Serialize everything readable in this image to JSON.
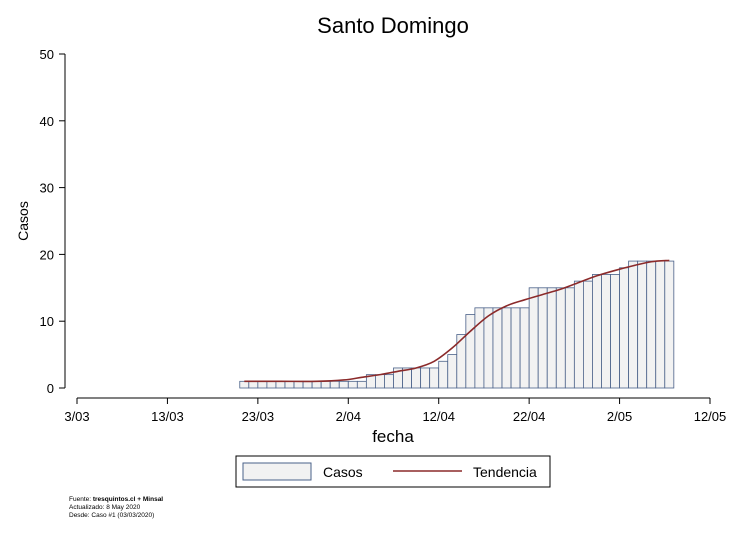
{
  "chart_data": {
    "type": "bar",
    "title": "Santo Domingo",
    "xlabel": "fecha",
    "ylabel": "Casos",
    "ylim": [
      0,
      50
    ],
    "yticks": [
      "0",
      "10",
      "20",
      "30",
      "40",
      "50"
    ],
    "xlim": [
      "2020-03-03",
      "2020-05-12"
    ],
    "xticks": [
      {
        "date": "2020-03-03",
        "label": "3/03"
      },
      {
        "date": "2020-03-13",
        "label": "13/03"
      },
      {
        "date": "2020-03-23",
        "label": "23/03"
      },
      {
        "date": "2020-04-02",
        "label": "2/04"
      },
      {
        "date": "2020-04-12",
        "label": "12/04"
      },
      {
        "date": "2020-04-22",
        "label": "22/04"
      },
      {
        "date": "2020-05-02",
        "label": "2/05"
      },
      {
        "date": "2020-05-12",
        "label": "12/05"
      }
    ],
    "grid": false,
    "legend_position": "bottom",
    "series": [
      {
        "name": "Casos",
        "kind": "bar",
        "color": "#f2f2f2",
        "edge_color": "#4a6189",
        "x": [
          "2020-03-21",
          "2020-03-22",
          "2020-03-23",
          "2020-03-24",
          "2020-03-25",
          "2020-03-26",
          "2020-03-27",
          "2020-03-28",
          "2020-03-29",
          "2020-03-30",
          "2020-03-31",
          "2020-04-01",
          "2020-04-02",
          "2020-04-03",
          "2020-04-04",
          "2020-04-05",
          "2020-04-06",
          "2020-04-07",
          "2020-04-08",
          "2020-04-09",
          "2020-04-10",
          "2020-04-11",
          "2020-04-12",
          "2020-04-13",
          "2020-04-14",
          "2020-04-15",
          "2020-04-16",
          "2020-04-17",
          "2020-04-18",
          "2020-04-19",
          "2020-04-20",
          "2020-04-21",
          "2020-04-22",
          "2020-04-23",
          "2020-04-24",
          "2020-04-25",
          "2020-04-26",
          "2020-04-27",
          "2020-04-28",
          "2020-04-29",
          "2020-04-30",
          "2020-05-01",
          "2020-05-02",
          "2020-05-03",
          "2020-05-04",
          "2020-05-05",
          "2020-05-06",
          "2020-05-07"
        ],
        "values": [
          1,
          1,
          1,
          1,
          1,
          1,
          1,
          1,
          1,
          1,
          1,
          1,
          1,
          1,
          2,
          2,
          2,
          3,
          3,
          3,
          3,
          3,
          4,
          5,
          8,
          11,
          12,
          12,
          12,
          12,
          12,
          12,
          15,
          15,
          15,
          15,
          15,
          16,
          16,
          17,
          17,
          17,
          18,
          19,
          19,
          19,
          19,
          19
        ]
      },
      {
        "name": "Tendencia",
        "kind": "line",
        "color": "#8b2a2a",
        "x": [
          "2020-03-21",
          "2020-03-25",
          "2020-03-29",
          "2020-04-01",
          "2020-04-03",
          "2020-04-05",
          "2020-04-07",
          "2020-04-09",
          "2020-04-11",
          "2020-04-13",
          "2020-04-15",
          "2020-04-17",
          "2020-04-19",
          "2020-04-21",
          "2020-04-23",
          "2020-04-25",
          "2020-04-27",
          "2020-04-29",
          "2020-05-01",
          "2020-05-03",
          "2020-05-05",
          "2020-05-07"
        ],
        "values": [
          1,
          1,
          1,
          1.2,
          1.6,
          2.0,
          2.5,
          3.0,
          4.0,
          6.0,
          8.5,
          10.8,
          12.3,
          13.2,
          14.0,
          14.8,
          15.8,
          16.8,
          17.6,
          18.3,
          18.9,
          19.1
        ]
      }
    ]
  },
  "footnote": {
    "source_label": "Fuente: ",
    "source_value": "tresquintos.cl + Minsal",
    "updated": "Actualizado: 8 May 2020",
    "since": "Desde: Caso #1  (03/03/2020)"
  }
}
